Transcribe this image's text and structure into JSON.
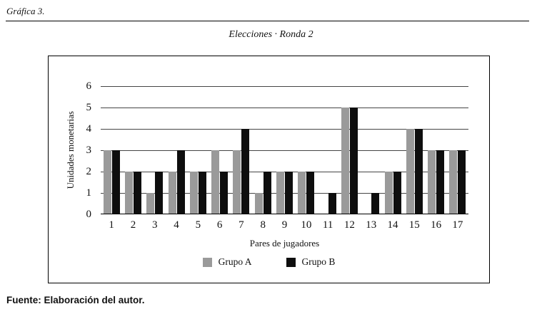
{
  "page": {
    "figure_label": "Gráfica 3.",
    "source_note": "Fuente: Elaboración del autor."
  },
  "chart_data": {
    "type": "bar",
    "title": "Elecciones · Ronda 2",
    "xlabel": "Pares de jugadores",
    "ylabel": "Unidades monetarias",
    "categories": [
      "1",
      "2",
      "3",
      "4",
      "5",
      "6",
      "7",
      "8",
      "9",
      "10",
      "11",
      "12",
      "13",
      "14",
      "15",
      "16",
      "17"
    ],
    "series": [
      {
        "name": "Grupo A",
        "color": "#9a9a9a",
        "values": [
          3,
          2,
          1,
          2,
          2,
          3,
          3,
          1,
          2,
          2,
          0,
          5,
          0,
          2,
          4,
          3,
          3
        ]
      },
      {
        "name": "Grupo B",
        "color": "#0e0e0e",
        "values": [
          3,
          2,
          2,
          3,
          2,
          2,
          4,
          2,
          2,
          2,
          1,
          5,
          1,
          2,
          4,
          3,
          3
        ]
      }
    ],
    "ylim": [
      0,
      6
    ],
    "yticks": [
      0,
      1,
      2,
      3,
      4,
      5,
      6
    ],
    "grid": true,
    "legend_position": "bottom"
  }
}
